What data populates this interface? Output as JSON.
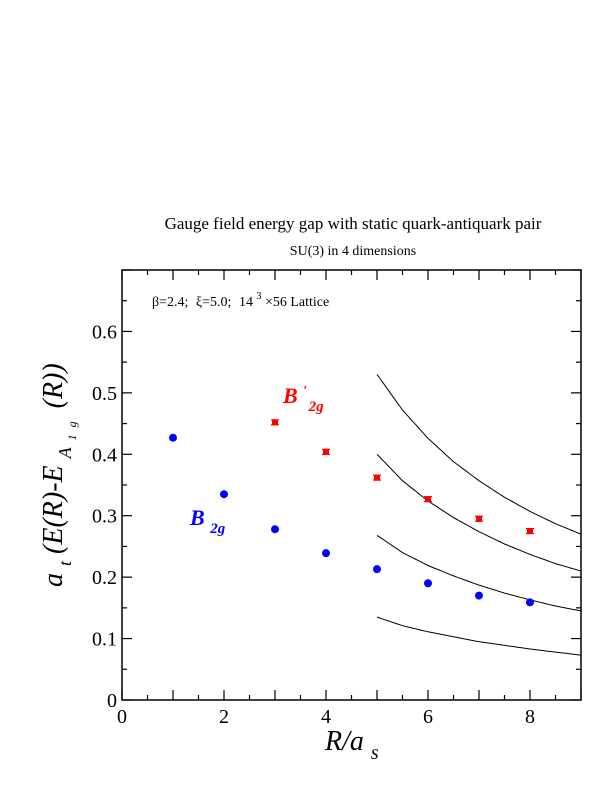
{
  "chart_data": {
    "type": "scatter",
    "title": "Gauge field energy gap with static quark-antiquark pair",
    "subtitle": "SU(3) in 4 dimensions",
    "annotation": {
      "beta": "β=2.4;",
      "xi": "ξ=5.0;",
      "lattice_base": "14",
      "lattice_exp": "3",
      "lattice_rest": "×56 Lattice"
    },
    "xlabel": {
      "main": "R/a",
      "sub": "s"
    },
    "ylabel": {
      "a": "a",
      "t": "t",
      "body": "(E(R)-E",
      "A": "A",
      "one": "1",
      "g": "g",
      "tail": "(R))"
    },
    "xlim": [
      0,
      9
    ],
    "ylim": [
      0,
      0.7
    ],
    "x_ticks": [
      "0",
      "2",
      "4",
      "6",
      "8"
    ],
    "y_ticks": [
      "0",
      "0.1",
      "0.2",
      "0.3",
      "0.4",
      "0.5",
      "0.6"
    ],
    "grid": false,
    "series": [
      {
        "label_main": "B",
        "label_sub": "2g",
        "label_prime": "",
        "color": "#0000ff",
        "marker": "circle",
        "x": [
          1,
          2,
          3,
          4,
          5,
          6,
          7,
          8
        ],
        "y": [
          0.427,
          0.335,
          0.278,
          0.239,
          0.213,
          0.19,
          0.17,
          0.159
        ]
      },
      {
        "label_main": "B",
        "label_sub": "2g",
        "label_prime": "′",
        "color": "#ff0000",
        "marker": "square-errorbar",
        "x": [
          3,
          4,
          5,
          6,
          7,
          8
        ],
        "y": [
          0.452,
          0.404,
          0.362,
          0.327,
          0.295,
          0.275
        ],
        "err": [
          0.004,
          0.004,
          0.004,
          0.004,
          0.004,
          0.004
        ]
      }
    ],
    "curves": [
      {
        "x": [
          5,
          5.5,
          6,
          6.5,
          7,
          7.5,
          8,
          8.5,
          9
        ],
        "y": [
          0.135,
          0.121,
          0.111,
          0.103,
          0.095,
          0.089,
          0.083,
          0.078,
          0.073
        ]
      },
      {
        "x": [
          5,
          5.5,
          6,
          6.5,
          7,
          7.5,
          8,
          8.5,
          9
        ],
        "y": [
          0.268,
          0.24,
          0.219,
          0.202,
          0.187,
          0.174,
          0.163,
          0.153,
          0.145
        ]
      },
      {
        "x": [
          5,
          5.5,
          6,
          6.5,
          7,
          7.5,
          8,
          8.5,
          9
        ],
        "y": [
          0.4,
          0.357,
          0.324,
          0.297,
          0.274,
          0.254,
          0.237,
          0.222,
          0.21
        ]
      },
      {
        "x": [
          5,
          5.5,
          6,
          6.5,
          7,
          7.5,
          8,
          8.5,
          9
        ],
        "y": [
          0.53,
          0.472,
          0.426,
          0.388,
          0.357,
          0.33,
          0.307,
          0.287,
          0.27
        ]
      }
    ]
  }
}
